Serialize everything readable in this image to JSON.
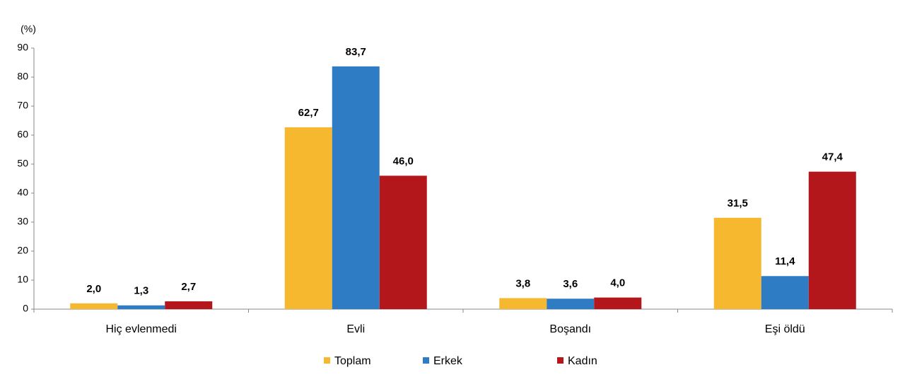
{
  "chart_data": {
    "type": "bar",
    "y_label": "(%)",
    "categories": [
      "Hiç evlenmedi",
      "Evli",
      "Boşandı",
      "Eşi öldü"
    ],
    "series": [
      {
        "name": "Toplam",
        "color": "#f5b82e",
        "values": [
          2.0,
          62.7,
          3.8,
          31.5
        ],
        "value_labels": [
          "2,0",
          "62,7",
          "3,8",
          "31,5"
        ]
      },
      {
        "name": "Erkek",
        "color": "#2e7dc4",
        "values": [
          1.3,
          83.7,
          3.6,
          11.4
        ],
        "value_labels": [
          "1,3",
          "83,7",
          "3,6",
          "11,4"
        ]
      },
      {
        "name": "Kadın",
        "color": "#b3171c",
        "values": [
          2.7,
          46.0,
          4.0,
          47.4
        ],
        "value_labels": [
          "2,7",
          "46,0",
          "4,0",
          "47,4"
        ]
      }
    ],
    "ylim": [
      0,
      90
    ],
    "yticks": [
      0,
      10,
      20,
      30,
      40,
      50,
      60,
      70,
      80,
      90
    ],
    "grid": false,
    "legend": "bottom"
  }
}
